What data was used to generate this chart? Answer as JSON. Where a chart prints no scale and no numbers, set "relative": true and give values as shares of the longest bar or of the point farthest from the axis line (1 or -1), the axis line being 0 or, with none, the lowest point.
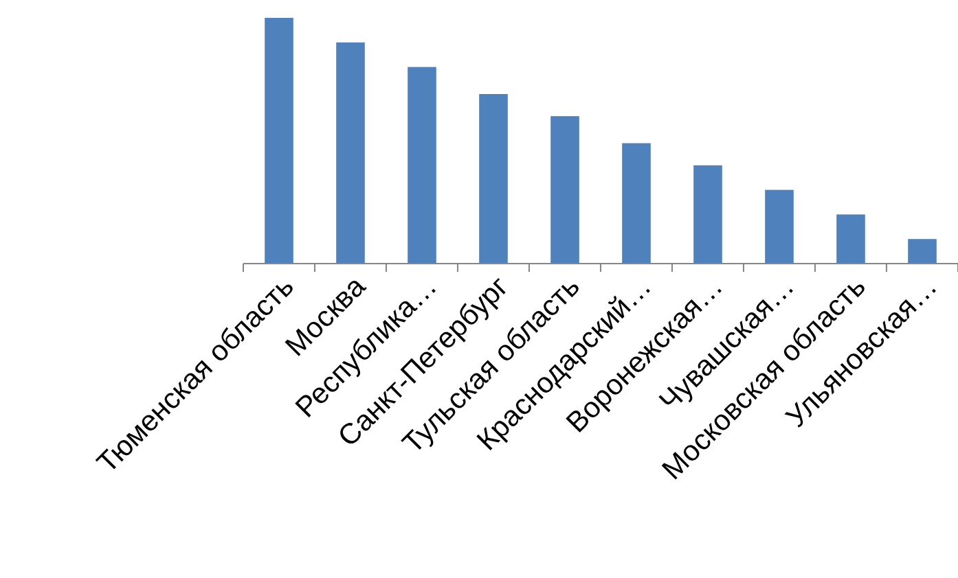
{
  "chart_data": {
    "type": "bar",
    "relative": true,
    "color": "#4f81bd",
    "categories": [
      "Тюменская область",
      "Москва",
      "Республика…",
      "Санкт-Петербург",
      "Тульская область",
      "Краснодарский…",
      "Воронежская…",
      "Чувашская…",
      "Московская область",
      "Ульяновская…"
    ],
    "values": [
      1,
      0.9,
      0.8,
      0.69,
      0.6,
      0.49,
      0.4,
      0.3,
      0.2,
      0.1
    ]
  }
}
